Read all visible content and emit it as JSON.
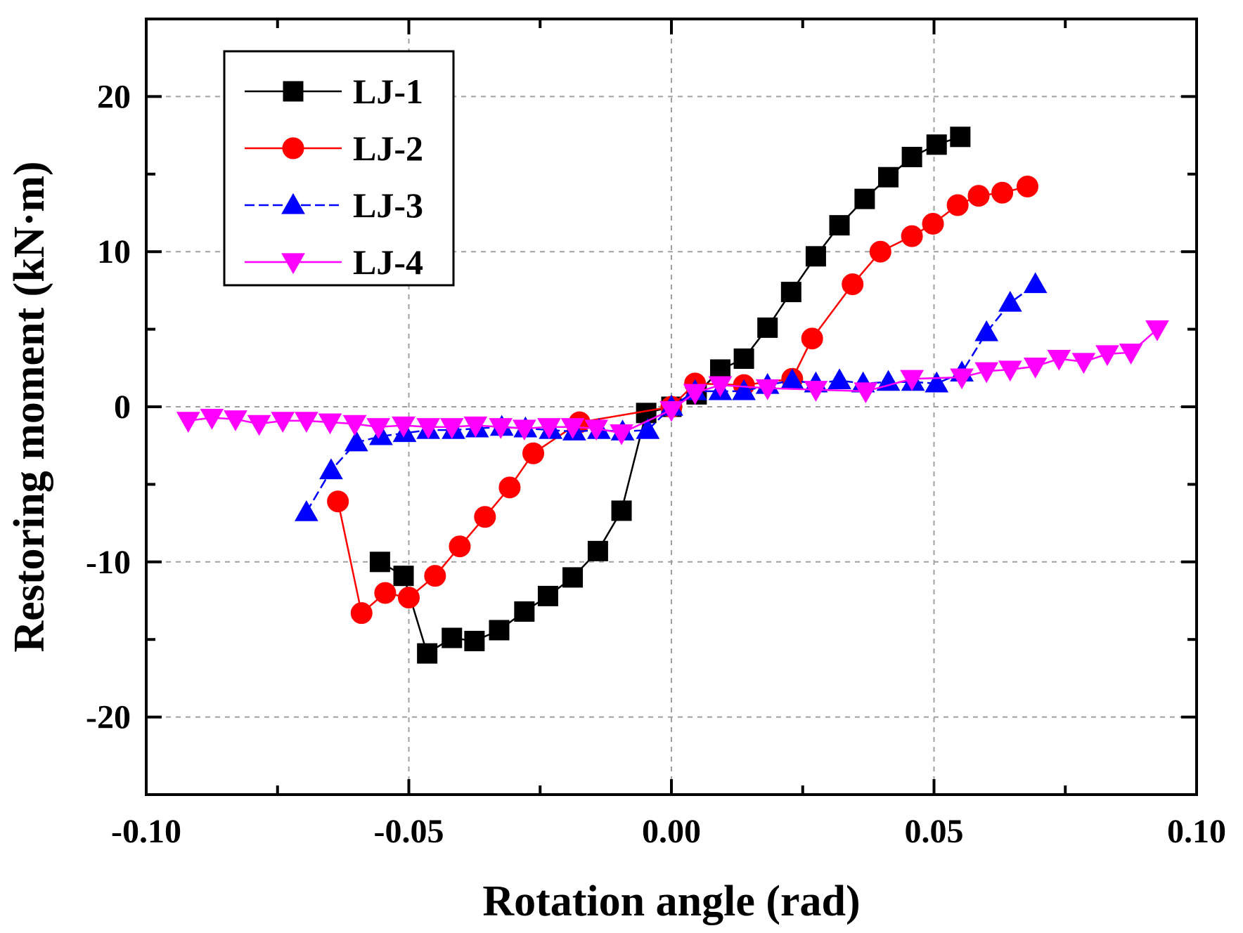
{
  "chart_data": {
    "type": "line",
    "title": "",
    "xlabel": "Rotation angle (rad)",
    "ylabel": "Restoring moment (kN·m)",
    "xlim": [
      -0.1,
      0.1
    ],
    "ylim": [
      -25,
      25
    ],
    "grid": true,
    "legend_position": "top-left",
    "x_ticks": [
      -0.1,
      -0.05,
      0.0,
      0.05,
      0.1
    ],
    "x_tick_labels": [
      "-0.10",
      "-0.05",
      "0.00",
      "0.05",
      "0.10"
    ],
    "y_ticks": [
      -20,
      -10,
      0,
      10,
      20
    ],
    "y_tick_labels": [
      "-20",
      "-10",
      "0",
      "10",
      "20"
    ],
    "series": [
      {
        "name": "LJ-1",
        "color": "#000000",
        "marker": "square",
        "points": [
          [
            -0.0555,
            -10.0
          ],
          [
            -0.051,
            -10.9
          ],
          [
            -0.0465,
            -15.9
          ],
          [
            -0.0418,
            -14.9
          ],
          [
            -0.0375,
            -15.1
          ],
          [
            -0.0328,
            -14.4
          ],
          [
            -0.028,
            -13.2
          ],
          [
            -0.0235,
            -12.2
          ],
          [
            -0.0188,
            -11.0
          ],
          [
            -0.014,
            -9.3
          ],
          [
            -0.0095,
            -6.7
          ],
          [
            -0.0048,
            -0.4
          ],
          [
            0.0,
            0.0
          ],
          [
            0.0048,
            0.8
          ],
          [
            0.0093,
            2.4
          ],
          [
            0.0138,
            3.1
          ],
          [
            0.0183,
            5.1
          ],
          [
            0.0228,
            7.4
          ],
          [
            0.0275,
            9.7
          ],
          [
            0.032,
            11.7
          ],
          [
            0.0368,
            13.4
          ],
          [
            0.0413,
            14.8
          ],
          [
            0.0458,
            16.1
          ],
          [
            0.0505,
            16.9
          ],
          [
            0.055,
            17.4
          ]
        ]
      },
      {
        "name": "LJ-2",
        "color": "#ff0000",
        "marker": "circle",
        "points": [
          [
            -0.0635,
            -6.1
          ],
          [
            -0.059,
            -13.3
          ],
          [
            -0.0545,
            -12.0
          ],
          [
            -0.05,
            -12.3
          ],
          [
            -0.045,
            -10.9
          ],
          [
            -0.0403,
            -9.0
          ],
          [
            -0.0355,
            -7.1
          ],
          [
            -0.0308,
            -5.2
          ],
          [
            -0.0263,
            -3.0
          ],
          [
            -0.0175,
            -1.0
          ],
          [
            0.0,
            0.0
          ],
          [
            0.0045,
            1.5
          ],
          [
            0.0138,
            1.4
          ],
          [
            0.023,
            1.8
          ],
          [
            0.0268,
            4.4
          ],
          [
            0.0345,
            7.9
          ],
          [
            0.0398,
            10.0
          ],
          [
            0.0458,
            11.0
          ],
          [
            0.0498,
            11.8
          ],
          [
            0.0545,
            13.0
          ],
          [
            0.0585,
            13.6
          ],
          [
            0.063,
            13.8
          ],
          [
            0.0678,
            14.2
          ]
        ]
      },
      {
        "name": "LJ-3",
        "color": "#0000ff",
        "marker": "triangle-up",
        "points": [
          [
            -0.0695,
            -6.8
          ],
          [
            -0.0648,
            -4.1
          ],
          [
            -0.06,
            -2.3
          ],
          [
            -0.0553,
            -1.9
          ],
          [
            -0.0508,
            -1.7
          ],
          [
            -0.0463,
            -1.5
          ],
          [
            -0.0415,
            -1.5
          ],
          [
            -0.037,
            -1.4
          ],
          [
            -0.0323,
            -1.3
          ],
          [
            -0.0278,
            -1.4
          ],
          [
            -0.023,
            -1.5
          ],
          [
            -0.0185,
            -1.6
          ],
          [
            -0.0138,
            -1.5
          ],
          [
            -0.0093,
            -1.6
          ],
          [
            -0.0045,
            -1.5
          ],
          [
            0.0,
            0.0
          ],
          [
            0.0045,
            1.0
          ],
          [
            0.0093,
            1.0
          ],
          [
            0.0138,
            1.0
          ],
          [
            0.0183,
            1.4
          ],
          [
            0.023,
            1.7
          ],
          [
            0.0275,
            1.5
          ],
          [
            0.032,
            1.7
          ],
          [
            0.0365,
            1.5
          ],
          [
            0.0413,
            1.6
          ],
          [
            0.046,
            1.6
          ],
          [
            0.0505,
            1.5
          ],
          [
            0.0553,
            2.2
          ],
          [
            0.06,
            4.8
          ],
          [
            0.0645,
            6.7
          ],
          [
            0.0693,
            7.9
          ]
        ]
      },
      {
        "name": "LJ-4",
        "color": "#ff00ff",
        "marker": "triangle-down",
        "points": [
          [
            -0.092,
            -0.9
          ],
          [
            -0.0875,
            -0.7
          ],
          [
            -0.083,
            -0.8
          ],
          [
            -0.0785,
            -1.1
          ],
          [
            -0.074,
            -0.9
          ],
          [
            -0.0695,
            -0.9
          ],
          [
            -0.065,
            -1.0
          ],
          [
            -0.0603,
            -1.1
          ],
          [
            -0.0558,
            -1.3
          ],
          [
            -0.051,
            -1.2
          ],
          [
            -0.0463,
            -1.3
          ],
          [
            -0.0418,
            -1.3
          ],
          [
            -0.0373,
            -1.2
          ],
          [
            -0.0325,
            -1.3
          ],
          [
            -0.028,
            -1.4
          ],
          [
            -0.0233,
            -1.3
          ],
          [
            -0.0188,
            -1.3
          ],
          [
            -0.0143,
            -1.4
          ],
          [
            -0.0095,
            -1.7
          ],
          [
            0.0,
            -0.2
          ],
          [
            0.0045,
            0.9
          ],
          [
            0.0093,
            1.4
          ],
          [
            0.0183,
            1.2
          ],
          [
            0.0275,
            1.1
          ],
          [
            0.037,
            1.0
          ],
          [
            0.0458,
            1.8
          ],
          [
            0.0553,
            1.9
          ],
          [
            0.06,
            2.3
          ],
          [
            0.0645,
            2.4
          ],
          [
            0.0693,
            2.6
          ],
          [
            0.0738,
            3.1
          ],
          [
            0.0785,
            2.9
          ],
          [
            0.083,
            3.4
          ],
          [
            0.0875,
            3.5
          ],
          [
            0.0925,
            5.0
          ]
        ]
      }
    ]
  }
}
